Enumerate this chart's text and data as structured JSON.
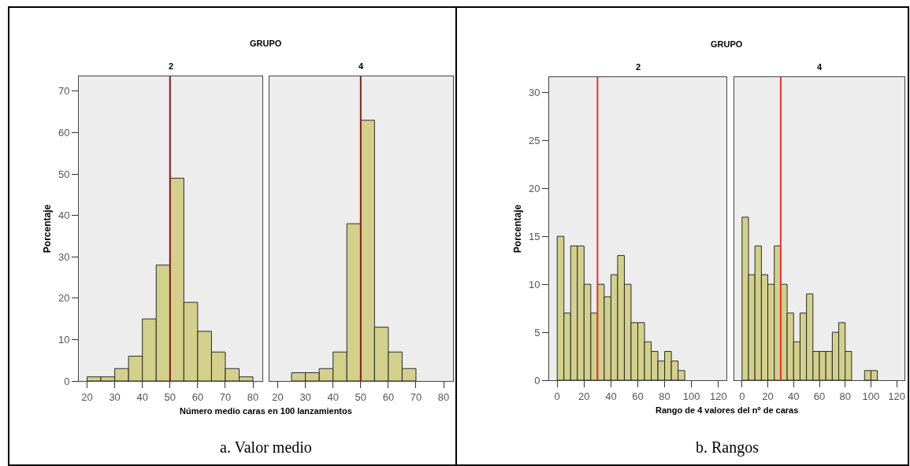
{
  "chart_data": [
    {
      "type": "histogram",
      "title": "2",
      "xlabel": "Número medio caras en 100 lanzamientos",
      "ylabel": "Porcentaje",
      "annotations": [
        "GRUPO",
        "a. Valor medio"
      ],
      "color": "#d3d08c",
      "bins": [
        20,
        25,
        30,
        35,
        40,
        45,
        50,
        55,
        60,
        65,
        70,
        75,
        80
      ],
      "values": [
        1,
        1,
        3,
        6,
        15,
        28,
        49,
        19,
        12,
        7,
        3,
        1
      ],
      "xlim": [
        17,
        83.4
      ],
      "ylim": [
        0,
        73.6
      ],
      "xticks": [
        20,
        30,
        40,
        50,
        60,
        70,
        80
      ],
      "yticks": [
        0,
        10,
        20,
        30,
        40,
        50,
        60,
        70
      ],
      "ref_lines": [
        {
          "axis": "x",
          "value": 50,
          "color": "#8b1a1a"
        }
      ],
      "grid": false
    },
    {
      "type": "histogram",
      "title": "4",
      "color": "#d3d08c",
      "bins": [
        25,
        30,
        35,
        40,
        45,
        50,
        55,
        60,
        65,
        70
      ],
      "values": [
        2,
        2,
        3,
        7,
        38,
        63,
        13,
        7,
        3
      ],
      "xlim": [
        17,
        83.4
      ],
      "ylim": [
        0,
        73.6
      ],
      "xticks": [
        20,
        30,
        40,
        50,
        60,
        70,
        80
      ],
      "yticks": [
        0,
        10,
        20,
        30,
        40,
        50,
        60,
        70
      ],
      "tick_labels": "x",
      "ref_lines": [
        {
          "axis": "x",
          "value": 50,
          "color": "#8b1a1a"
        }
      ],
      "grid": false
    },
    {
      "type": "histogram",
      "title": "2",
      "xlabel": "Rango de 4 valores del nº de caras",
      "ylabel": "Porcentaje",
      "annotations": [
        "GRUPO",
        "b. Rangos"
      ],
      "color": "#d3d08c",
      "bins": [
        0,
        5,
        10,
        15,
        20,
        25,
        30,
        35,
        40,
        45,
        50,
        55,
        60,
        65,
        70,
        75,
        80,
        85,
        90,
        95
      ],
      "values": [
        15,
        7,
        14,
        14,
        10,
        7,
        10,
        8.7,
        11,
        13,
        10,
        6,
        6,
        4,
        3,
        2,
        3,
        2,
        1
      ],
      "xlim": [
        -6,
        126
      ],
      "ylim": [
        0,
        31.6
      ],
      "xticks": [
        0,
        20,
        40,
        60,
        80,
        100,
        120
      ],
      "yticks": [
        0,
        5,
        10,
        15,
        20,
        25,
        30
      ],
      "ref_lines": [
        {
          "axis": "x",
          "value": 30,
          "color": "#e8332e"
        }
      ],
      "grid": false
    },
    {
      "type": "histogram",
      "title": "4",
      "color": "#d3d08c",
      "bins": [
        0,
        5,
        10,
        15,
        20,
        25,
        30,
        35,
        40,
        45,
        50,
        55,
        60,
        65,
        70,
        75,
        80,
        85,
        90,
        95,
        100,
        105
      ],
      "values": [
        17,
        11,
        14,
        11,
        10,
        14,
        10,
        7,
        4,
        7,
        9,
        3,
        3,
        3,
        5,
        6,
        3,
        0,
        0,
        1,
        1
      ],
      "xlim": [
        -6,
        126
      ],
      "ylim": [
        0,
        31.6
      ],
      "xticks": [
        0,
        20,
        40,
        60,
        80,
        100,
        120
      ],
      "yticks": [
        0,
        5,
        10,
        15,
        20,
        25,
        30
      ],
      "tick_labels": "x",
      "ref_lines": [
        {
          "axis": "x",
          "value": 30,
          "color": "#e8332e"
        }
      ],
      "grid": false
    }
  ]
}
